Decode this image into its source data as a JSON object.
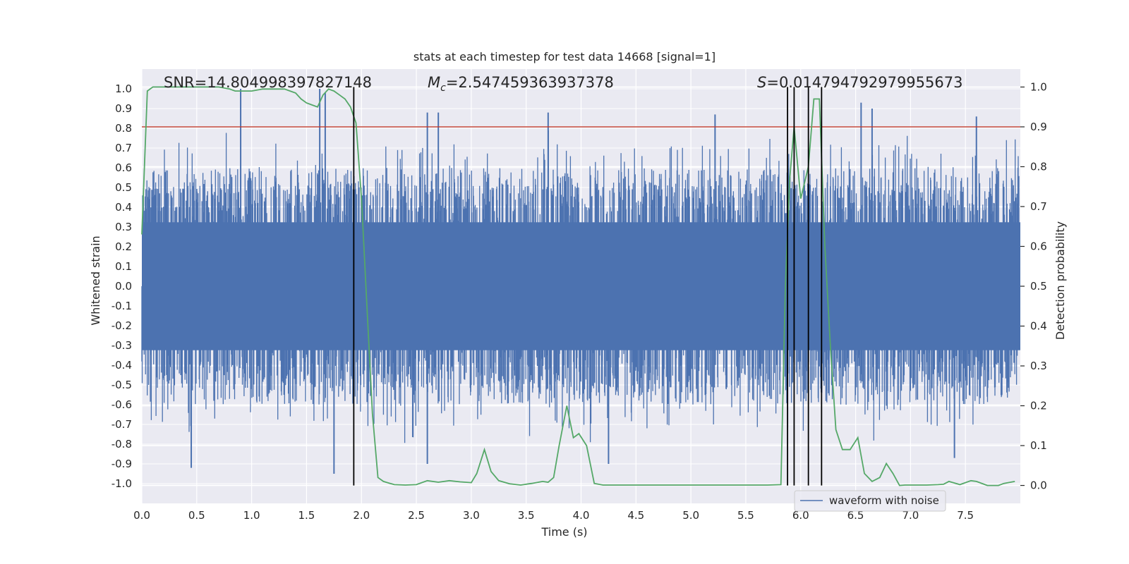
{
  "chart_data": {
    "type": "line",
    "title": "stats at each timestep for test data 14668 [signal=1]",
    "xlabel": "Time (s)",
    "ylabel": "Whitened strain",
    "y2label": "Detection probability",
    "xlim": [
      0.0,
      8.0
    ],
    "ylim": [
      -1.1,
      1.1
    ],
    "y2lim": [
      -0.045,
      1.045
    ],
    "xticks": [
      "0.0",
      "0.5",
      "1.0",
      "1.5",
      "2.0",
      "2.5",
      "3.0",
      "3.5",
      "4.0",
      "4.5",
      "5.0",
      "5.5",
      "6.0",
      "6.5",
      "7.0",
      "7.5"
    ],
    "yticks": [
      "1.0",
      "0.9",
      "0.8",
      "0.7",
      "0.6",
      "0.5",
      "0.4",
      "0.3",
      "0.2",
      "0.1",
      "0.0",
      "-0.1",
      "-0.2",
      "-0.3",
      "-0.4",
      "-0.5",
      "-0.6",
      "-0.7",
      "-0.8",
      "-0.9",
      "-1.0"
    ],
    "y2ticks": [
      "1.0",
      "0.9",
      "0.8",
      "0.7",
      "0.6",
      "0.5",
      "0.4",
      "0.3",
      "0.2",
      "0.1",
      "0.0"
    ],
    "annotations": {
      "snr": "SNR=14.804998397827148",
      "mc_symbol": "M",
      "mc_sub": "c",
      "mc_value": "=2.547459363937378",
      "s_symbol": "S",
      "s_value": "=0.014794792979955673"
    },
    "legend": {
      "label": "waveform with noise",
      "position": "lower-right"
    },
    "threshold": {
      "value": 0.9,
      "axis": "right",
      "color": "#c0392b"
    },
    "vertical_markers": [
      1.93,
      5.88,
      5.94,
      6.07,
      6.19
    ],
    "series": [
      {
        "name": "waveform with noise",
        "axis": "left",
        "color": "#4c72b0",
        "style": "dense-noise",
        "envelope": 0.45,
        "peaks": [
          {
            "x": 0.9,
            "y": 1.0
          },
          {
            "x": 1.62,
            "y": 1.0
          },
          {
            "x": 1.67,
            "y": 0.98
          },
          {
            "x": 2.6,
            "y": 0.88
          },
          {
            "x": 2.7,
            "y": 0.88
          },
          {
            "x": 3.7,
            "y": 0.88
          },
          {
            "x": 5.22,
            "y": 0.87
          },
          {
            "x": 6.55,
            "y": 0.93
          },
          {
            "x": 6.65,
            "y": 0.9
          },
          {
            "x": 7.6,
            "y": 0.86
          },
          {
            "x": 0.45,
            "y": -0.92
          },
          {
            "x": 1.75,
            "y": -0.95
          },
          {
            "x": 2.6,
            "y": -0.9
          },
          {
            "x": 4.25,
            "y": -0.9
          },
          {
            "x": 7.4,
            "y": -0.87
          }
        ]
      },
      {
        "name": "detection probability",
        "axis": "right",
        "color": "#55a868",
        "x": [
          0.0,
          0.05,
          0.1,
          0.2,
          0.3,
          0.4,
          0.5,
          0.6,
          0.7,
          0.8,
          0.85,
          0.9,
          1.0,
          1.1,
          1.2,
          1.3,
          1.35,
          1.4,
          1.45,
          1.5,
          1.55,
          1.6,
          1.65,
          1.7,
          1.75,
          1.8,
          1.85,
          1.9,
          1.95,
          2.0,
          2.05,
          2.1,
          2.15,
          2.2,
          2.25,
          2.3,
          2.4,
          2.5,
          2.6,
          2.7,
          2.8,
          2.9,
          3.0,
          3.05,
          3.12,
          3.18,
          3.25,
          3.35,
          3.45,
          3.55,
          3.65,
          3.7,
          3.75,
          3.8,
          3.87,
          3.93,
          3.98,
          4.05,
          4.12,
          4.2,
          4.3,
          4.5,
          4.7,
          4.9,
          5.1,
          5.3,
          5.5,
          5.7,
          5.82,
          5.86,
          5.9,
          5.94,
          6.0,
          6.07,
          6.12,
          6.17,
          6.22,
          6.27,
          6.32,
          6.38,
          6.45,
          6.52,
          6.58,
          6.65,
          6.72,
          6.78,
          6.84,
          6.9,
          6.95,
          7.05,
          7.15,
          7.25,
          7.3,
          7.35,
          7.45,
          7.55,
          7.6,
          7.7,
          7.8,
          7.85,
          7.95
        ],
        "y": [
          0.63,
          0.99,
          1.0,
          1.0,
          1.0,
          1.0,
          1.0,
          1.0,
          1.0,
          0.995,
          0.99,
          0.99,
          0.99,
          0.995,
          0.995,
          0.995,
          0.99,
          0.985,
          0.97,
          0.96,
          0.955,
          0.95,
          0.98,
          0.995,
          0.99,
          0.98,
          0.97,
          0.95,
          0.91,
          0.72,
          0.45,
          0.18,
          0.02,
          0.01,
          0.006,
          0.002,
          0.001,
          0.002,
          0.012,
          0.008,
          0.012,
          0.009,
          0.007,
          0.03,
          0.09,
          0.035,
          0.012,
          0.004,
          0.001,
          0.005,
          0.01,
          0.008,
          0.02,
          0.1,
          0.2,
          0.12,
          0.13,
          0.1,
          0.005,
          0.001,
          0.001,
          0.001,
          0.001,
          0.001,
          0.001,
          0.001,
          0.001,
          0.001,
          0.002,
          0.5,
          0.77,
          0.9,
          0.72,
          0.8,
          0.97,
          0.97,
          0.6,
          0.35,
          0.14,
          0.09,
          0.09,
          0.12,
          0.03,
          0.01,
          0.02,
          0.055,
          0.03,
          0.0,
          0.001,
          0.001,
          0.001,
          0.002,
          0.003,
          0.01,
          0.002,
          0.012,
          0.01,
          0.0,
          0.0,
          0.005,
          0.01
        ]
      }
    ]
  }
}
